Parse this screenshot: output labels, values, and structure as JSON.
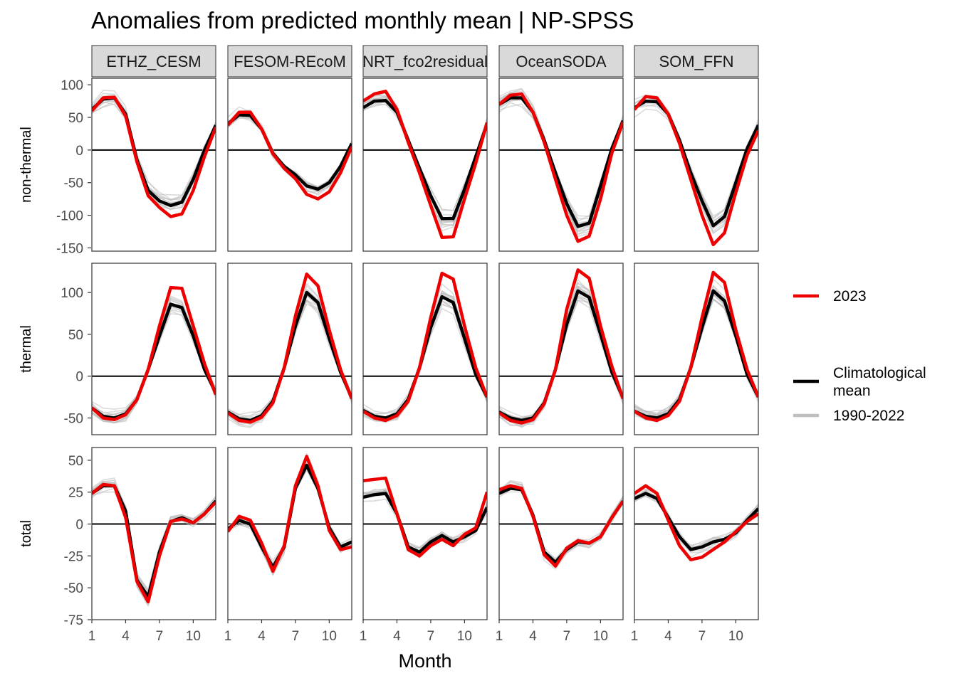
{
  "chart_data": {
    "type": "line",
    "title": "Anomalies from predicted monthly mean | NP-SPSS",
    "xlabel": "Month",
    "ylabel": "",
    "x_ticks": [
      "1",
      "4",
      "7",
      "10"
    ],
    "x_values": [
      1,
      2,
      3,
      4,
      5,
      6,
      7,
      8,
      9,
      10,
      11,
      12
    ],
    "products": [
      "ETHZ_CESM",
      "FESOM-REcoM",
      "NRT_fco2residual",
      "OceanSODA",
      "SOM_FFN"
    ],
    "rows": [
      {
        "label": "non-thermal",
        "ylim": [
          -155,
          110
        ],
        "yticks": [
          "100",
          "50",
          "0",
          "-50",
          "-100",
          "-150"
        ],
        "ytick_values": [
          100,
          50,
          0,
          -50,
          -100,
          -150
        ]
      },
      {
        "label": "thermal",
        "ylim": [
          -70,
          135
        ],
        "yticks": [
          "100",
          "50",
          "0",
          "-50"
        ],
        "ytick_values": [
          100,
          50,
          0,
          -50
        ]
      },
      {
        "label": "total",
        "ylim": [
          -75,
          60
        ],
        "yticks": [
          "50",
          "25",
          "0",
          "-25",
          "-50",
          "-75"
        ],
        "ytick_values": [
          50,
          25,
          0,
          -25,
          -50,
          -75
        ]
      }
    ],
    "series_styles": {
      "2023": "#ee0000",
      "Climatological mean": "#000000",
      "1990-2022": "#bebebe"
    },
    "legend": {
      "position": "right",
      "entries": [
        {
          "label": "2023",
          "color": "#ee0000"
        },
        {
          "label": "Climatological\nmean",
          "color": "#000000"
        },
        {
          "label": "1990-2022",
          "color": "#bebebe"
        }
      ]
    },
    "panels": [
      {
        "row": "non-thermal",
        "product": "ETHZ_CESM",
        "mean": [
          62,
          78,
          80,
          55,
          -15,
          -62,
          -78,
          -85,
          -80,
          -45,
          0,
          38
        ],
        "y2023": [
          60,
          80,
          81,
          52,
          -18,
          -70,
          -88,
          -102,
          -98,
          -62,
          -10,
          35
        ]
      },
      {
        "row": "non-thermal",
        "product": "FESOM-REcoM",
        "mean": [
          40,
          54,
          53,
          32,
          -5,
          -25,
          -38,
          -55,
          -60,
          -50,
          -25,
          10
        ],
        "y2023": [
          38,
          58,
          58,
          32,
          -6,
          -28,
          -44,
          -68,
          -75,
          -64,
          -35,
          5
        ]
      },
      {
        "row": "non-thermal",
        "product": "NRT_fco2residual",
        "mean": [
          65,
          75,
          76,
          58,
          15,
          -28,
          -70,
          -105,
          -105,
          -60,
          -10,
          40
        ],
        "y2023": [
          75,
          86,
          90,
          62,
          12,
          -35,
          -85,
          -134,
          -133,
          -75,
          -20,
          42
        ]
      },
      {
        "row": "non-thermal",
        "product": "OceanSODA",
        "mean": [
          70,
          80,
          80,
          58,
          15,
          -35,
          -82,
          -117,
          -112,
          -55,
          2,
          45
        ],
        "y2023": [
          70,
          84,
          86,
          58,
          12,
          -45,
          -100,
          -140,
          -132,
          -75,
          -5,
          43
        ]
      },
      {
        "row": "non-thermal",
        "product": "SOM_FFN",
        "mean": [
          65,
          75,
          74,
          55,
          15,
          -35,
          -78,
          -116,
          -102,
          -50,
          2,
          38
        ],
        "y2023": [
          62,
          82,
          80,
          55,
          10,
          -45,
          -100,
          -145,
          -127,
          -65,
          -8,
          30
        ]
      },
      {
        "row": "thermal",
        "product": "ETHZ_CESM",
        "mean": [
          -38,
          -48,
          -50,
          -45,
          -28,
          8,
          48,
          86,
          82,
          48,
          8,
          -20
        ],
        "y2023": [
          -38,
          -50,
          -52,
          -46,
          -28,
          8,
          60,
          106,
          105,
          60,
          15,
          -22
        ]
      },
      {
        "row": "thermal",
        "product": "FESOM-REcoM",
        "mean": [
          -43,
          -51,
          -53,
          -47,
          -30,
          10,
          60,
          100,
          88,
          45,
          5,
          -26
        ],
        "y2023": [
          -44,
          -53,
          -55,
          -49,
          -32,
          10,
          72,
          122,
          108,
          55,
          8,
          -27
        ]
      },
      {
        "row": "thermal",
        "product": "NRT_fco2residual",
        "mean": [
          -41,
          -48,
          -50,
          -45,
          -28,
          10,
          58,
          95,
          88,
          45,
          2,
          -25
        ],
        "y2023": [
          -42,
          -50,
          -53,
          -47,
          -30,
          10,
          70,
          123,
          116,
          60,
          10,
          -25
        ]
      },
      {
        "row": "thermal",
        "product": "OceanSODA",
        "mean": [
          -43,
          -50,
          -53,
          -50,
          -32,
          8,
          62,
          102,
          94,
          50,
          5,
          -26
        ],
        "y2023": [
          -44,
          -53,
          -56,
          -52,
          -33,
          8,
          80,
          127,
          117,
          60,
          12,
          -27
        ]
      },
      {
        "row": "thermal",
        "product": "SOM_FFN",
        "mean": [
          -42,
          -48,
          -50,
          -45,
          -28,
          10,
          58,
          102,
          90,
          48,
          2,
          -25
        ],
        "y2023": [
          -42,
          -50,
          -53,
          -47,
          -30,
          10,
          70,
          124,
          112,
          55,
          8,
          -25
        ]
      },
      {
        "row": "total",
        "product": "ETHZ_CESM",
        "mean": [
          24,
          30,
          30,
          10,
          -44,
          -57,
          -22,
          2,
          5,
          1,
          8,
          18
        ],
        "y2023": [
          24,
          31,
          30,
          5,
          -45,
          -61,
          -25,
          2,
          4,
          1,
          8,
          17
        ]
      },
      {
        "row": "total",
        "product": "FESOM-REcoM",
        "mean": [
          -4,
          3,
          0,
          -18,
          -34,
          -18,
          28,
          46,
          28,
          -3,
          -18,
          -14
        ],
        "y2023": [
          -6,
          6,
          3,
          -15,
          -37,
          -17,
          30,
          53,
          30,
          -5,
          -20,
          -18
        ]
      },
      {
        "row": "total",
        "product": "NRT_fco2residual",
        "mean": [
          21,
          23,
          24,
          8,
          -18,
          -22,
          -14,
          -9,
          -14,
          -10,
          -5,
          13
        ],
        "y2023": [
          34,
          35,
          36,
          8,
          -20,
          -25,
          -17,
          -12,
          -17,
          -8,
          -3,
          25
        ]
      },
      {
        "row": "total",
        "product": "OceanSODA",
        "mean": [
          24,
          28,
          27,
          7,
          -22,
          -30,
          -20,
          -14,
          -15,
          -10,
          5,
          18
        ],
        "y2023": [
          27,
          30,
          28,
          6,
          -24,
          -33,
          -19,
          -13,
          -15,
          -10,
          5,
          18
        ]
      },
      {
        "row": "total",
        "product": "SOM_FFN",
        "mean": [
          20,
          24,
          20,
          5,
          -10,
          -20,
          -18,
          -14,
          -12,
          -7,
          3,
          12
        ],
        "y2023": [
          24,
          30,
          24,
          3,
          -17,
          -28,
          -26,
          -20,
          -14,
          -6,
          2,
          8
        ]
      }
    ]
  }
}
